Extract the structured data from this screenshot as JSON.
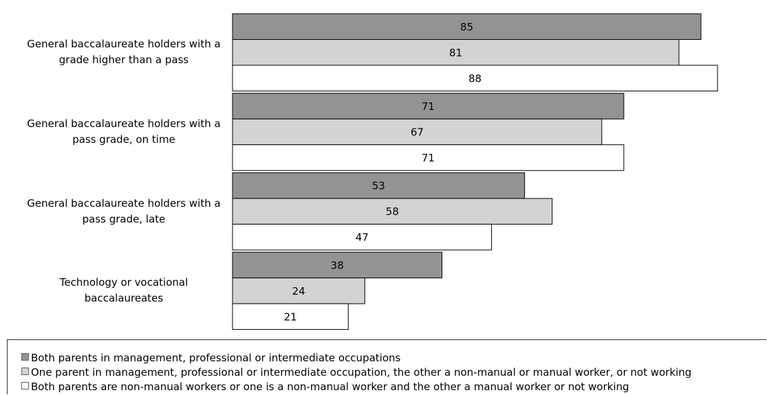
{
  "chart_data": {
    "type": "bar",
    "orientation": "horizontal",
    "categories": [
      "General baccalaureate holders with a grade higher than a pass",
      "General baccalaureate holders with a pass grade, on time",
      "General baccalaureate holders with a pass grade, late",
      "Technology or vocational baccalaureates"
    ],
    "series": [
      {
        "name": "Both parents in management, professional or intermediate occupations",
        "color": "#939393",
        "values": [
          85,
          71,
          53,
          38
        ]
      },
      {
        "name": "One parent in management, professional or intermediate occupation, the other a non-manual or manual worker, or not working",
        "color": "#d3d3d3",
        "values": [
          81,
          67,
          58,
          24
        ]
      },
      {
        "name": "Both parents are non-manual workers or one is a non-manual worker and the other a manual worker or not working",
        "color": "#ffffff",
        "values": [
          88,
          71,
          47,
          21
        ]
      }
    ]
  }
}
